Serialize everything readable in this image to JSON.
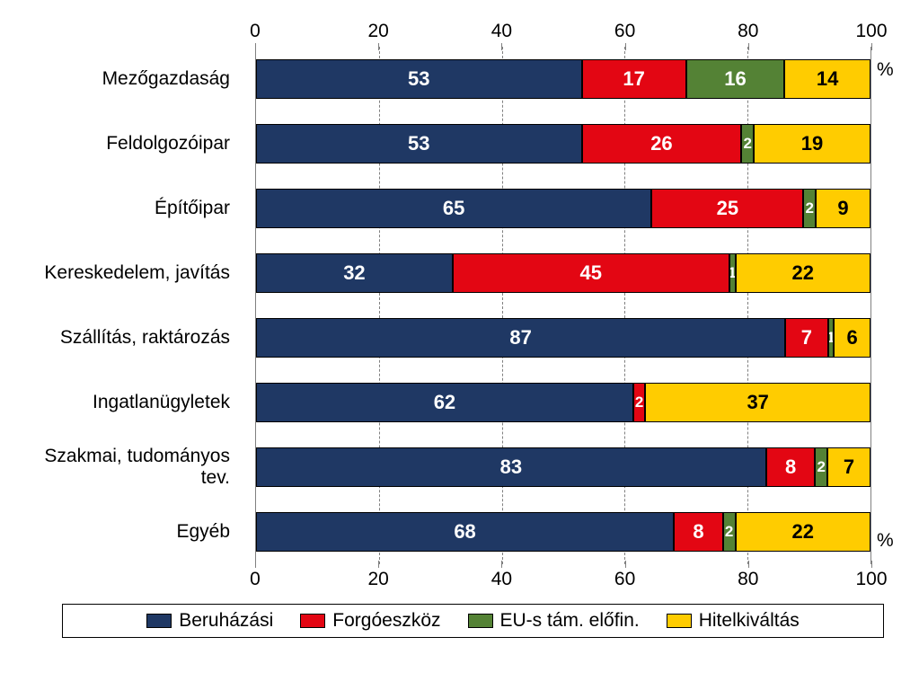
{
  "chart": {
    "type": "stacked-bar-100",
    "orientation": "horizontal",
    "xlim": [
      0,
      100
    ],
    "xtick_step": 20,
    "xticks": [
      0,
      20,
      40,
      60,
      80,
      100
    ],
    "label_fontsize": 21,
    "value_fontsize": 22,
    "value_fontweight": "bold",
    "background_color": "#ffffff",
    "grid_color": "#808080",
    "grid_dash": "4 4",
    "bar_border_color": "#000000",
    "percent_symbol": "%",
    "categories": [
      {
        "label": "Mezőgazdaság",
        "values": [
          53,
          17,
          16,
          14
        ]
      },
      {
        "label": "Feldolgozóipar",
        "values": [
          53,
          26,
          2,
          19
        ]
      },
      {
        "label": "Építőipar",
        "values": [
          65,
          25,
          2,
          9
        ]
      },
      {
        "label": "Kereskedelem, javítás",
        "values": [
          32,
          45,
          1,
          22
        ]
      },
      {
        "label": "Szállítás, raktározás",
        "values": [
          87,
          7,
          1,
          6
        ]
      },
      {
        "label": "Ingatlanügyletek",
        "values": [
          62,
          2,
          0,
          37
        ]
      },
      {
        "label": "Szakmai, tudományos tev.",
        "values": [
          83,
          8,
          2,
          7
        ]
      },
      {
        "label": "Egyéb",
        "values": [
          68,
          8,
          2,
          22
        ]
      }
    ],
    "series": [
      {
        "name": "Beruházási",
        "color": "#1f3864",
        "text_color": "#ffffff"
      },
      {
        "name": "Forgóeszköz",
        "color": "#e30613",
        "text_color": "#ffffff"
      },
      {
        "name": "EU-s tám. előfin.",
        "color": "#548235",
        "text_color": "#ffffff"
      },
      {
        "name": "Hitelkiváltás",
        "color": "#ffcc00",
        "text_color": "#000000"
      }
    ],
    "hide_value_below": 1
  }
}
